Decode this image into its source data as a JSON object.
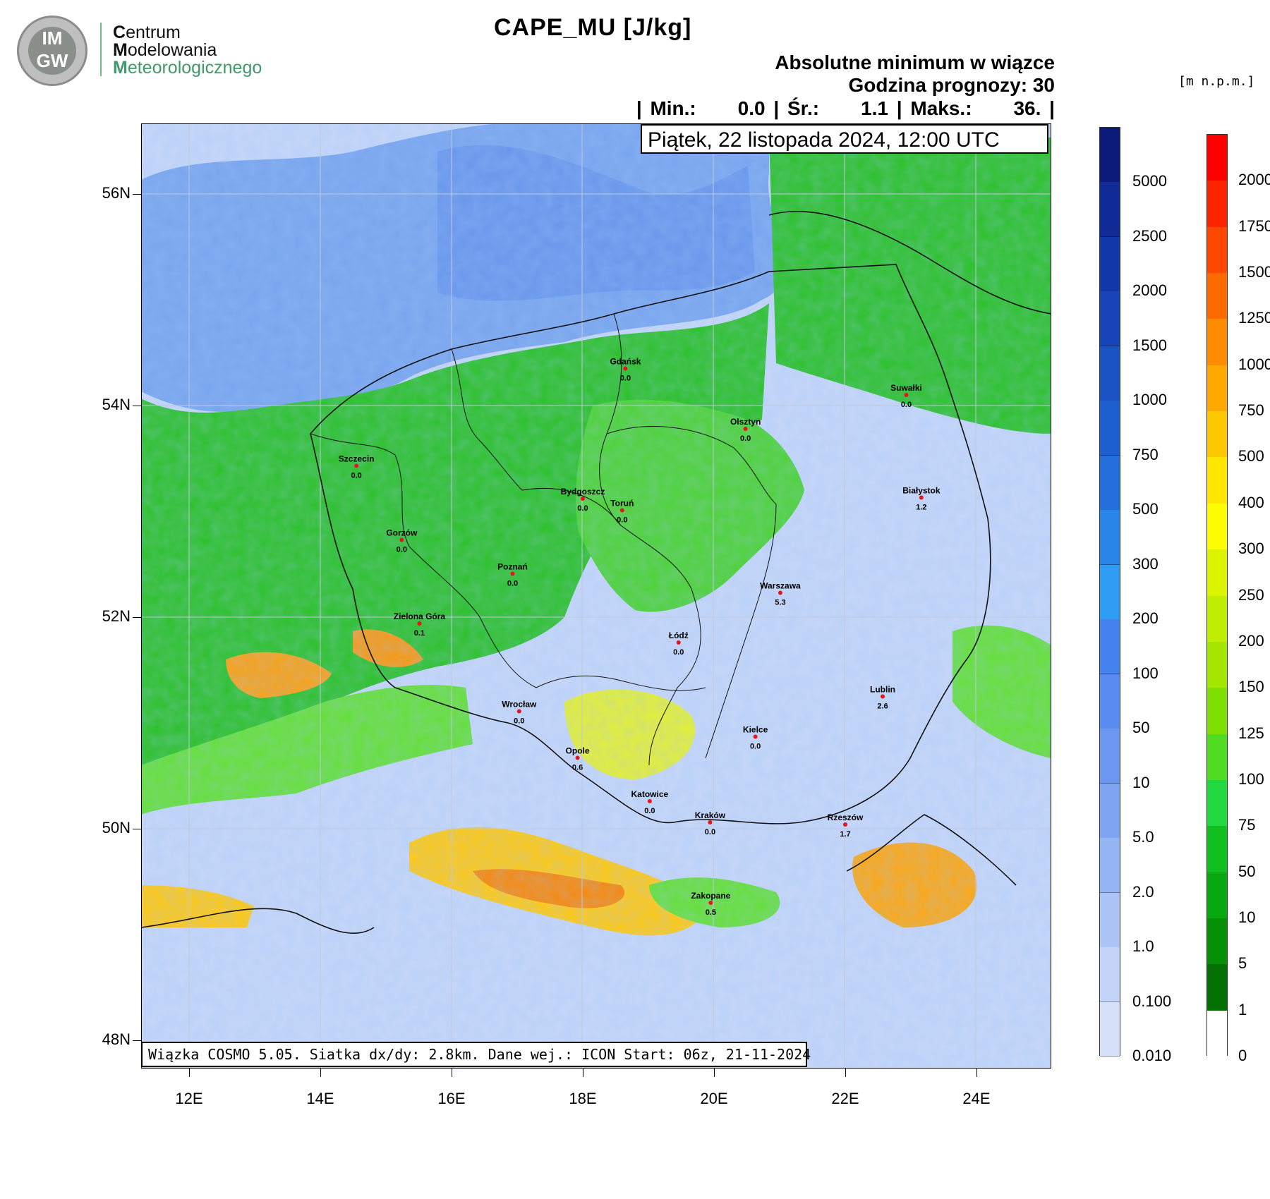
{
  "logo": {
    "initials_top": "IM",
    "initials_bottom": "GW",
    "line1_first": "C",
    "line1_rest": "entrum",
    "line2_first": "M",
    "line2_rest": "odelowania",
    "line3_first": "M",
    "line3_rest": "eteorologicznego"
  },
  "header": {
    "title": "CAPE_MU [J/kg]",
    "subtitle1": "Absolutne minimum w wiązce",
    "subtitle2": "Godzina prognozy: 30",
    "stats": {
      "min_label": "| Min.:",
      "min_value": "0.0",
      "avg_label": "| Śr.:",
      "avg_value": "1.1",
      "max_label": "| Maks.:",
      "max_value": "36.",
      "end": "|"
    },
    "date": "Piątek, 22 listopada 2024, 12:00 UTC"
  },
  "footer": {
    "model_info": "Wiązka COSMO 5.05. Siatka dx/dy: 2.8km. Dane wej.: ICON Start: 06z, 21-11-2024"
  },
  "axes": {
    "lat_labels": [
      "56N",
      "54N",
      "52N",
      "50N",
      "48N"
    ],
    "lon_labels": [
      "12E",
      "14E",
      "16E",
      "18E",
      "20E",
      "22E",
      "24E"
    ]
  },
  "cape_scale": {
    "labels": [
      "5000",
      "2500",
      "2000",
      "1500",
      "1000",
      "750",
      "500",
      "300",
      "200",
      "100",
      "50",
      "10",
      "5.0",
      "2.0",
      "1.0",
      "0.100",
      "0.010"
    ],
    "colors": [
      "#0c1a7a",
      "#102a96",
      "#1237a8",
      "#1644b8",
      "#1a52c4",
      "#1e5fd0",
      "#2370dc",
      "#2a85e8",
      "#2f9cf4",
      "#4682ee",
      "#5a8cf0",
      "#6b97f0",
      "#7fa5f2",
      "#95b4f3",
      "#abc3f5",
      "#c2d3f7",
      "#d6e1f9"
    ]
  },
  "terrain_scale": {
    "unit": "[m n.p.m.]",
    "labels": [
      "2000",
      "1750",
      "1500",
      "1250",
      "1000",
      "750",
      "500",
      "400",
      "300",
      "250",
      "200",
      "150",
      "125",
      "100",
      "75",
      "50",
      "10",
      "5",
      "1",
      "0"
    ],
    "colors": [
      "#fe0000",
      "#fe2400",
      "#fe4800",
      "#fe6a00",
      "#fe8c00",
      "#fea800",
      "#fec800",
      "#fee600",
      "#fefe00",
      "#dcf400",
      "#c0ee00",
      "#a4e600",
      "#7ee000",
      "#50dc20",
      "#20d840",
      "#10c020",
      "#08a810",
      "#069008",
      "#047004",
      "#ffffff"
    ]
  },
  "cities": [
    {
      "name": "Gdańsk",
      "value": "0.0",
      "lon": 18.65,
      "lat": 54.35
    },
    {
      "name": "Suwałki",
      "value": "0.0",
      "lon": 22.93,
      "lat": 54.1
    },
    {
      "name": "Olsztyn",
      "value": "0.0",
      "lon": 20.48,
      "lat": 53.78
    },
    {
      "name": "Szczecin",
      "value": "0.0",
      "lon": 14.55,
      "lat": 53.43
    },
    {
      "name": "Bydgoszcz",
      "value": "0.0",
      "lon": 18.0,
      "lat": 53.12
    },
    {
      "name": "Toruń",
      "value": "0.0",
      "lon": 18.6,
      "lat": 53.01
    },
    {
      "name": "Białystok",
      "value": "1.2",
      "lon": 23.16,
      "lat": 53.13
    },
    {
      "name": "Gorzów",
      "value": "0.0",
      "lon": 15.24,
      "lat": 52.73
    },
    {
      "name": "Poznań",
      "value": "0.0",
      "lon": 16.93,
      "lat": 52.41
    },
    {
      "name": "Warszawa",
      "value": "5.3",
      "lon": 21.01,
      "lat": 52.23
    },
    {
      "name": "Zielona Góra",
      "value": "0.1",
      "lon": 15.51,
      "lat": 51.94
    },
    {
      "name": "Łódź",
      "value": "0.0",
      "lon": 19.46,
      "lat": 51.76
    },
    {
      "name": "Lublin",
      "value": "2.6",
      "lon": 22.57,
      "lat": 51.25
    },
    {
      "name": "Wrocław",
      "value": "0.0",
      "lon": 17.03,
      "lat": 51.11
    },
    {
      "name": "Kielce",
      "value": "0.0",
      "lon": 20.63,
      "lat": 50.87
    },
    {
      "name": "Opole",
      "value": "0.6",
      "lon": 17.92,
      "lat": 50.67
    },
    {
      "name": "Katowice",
      "value": "0.0",
      "lon": 19.02,
      "lat": 50.26
    },
    {
      "name": "Kraków",
      "value": "0.0",
      "lon": 19.94,
      "lat": 50.06
    },
    {
      "name": "Rzeszów",
      "value": "1.7",
      "lon": 22.0,
      "lat": 50.04
    },
    {
      "name": "Zakopane",
      "value": "0.5",
      "lon": 19.95,
      "lat": 49.3
    }
  ]
}
